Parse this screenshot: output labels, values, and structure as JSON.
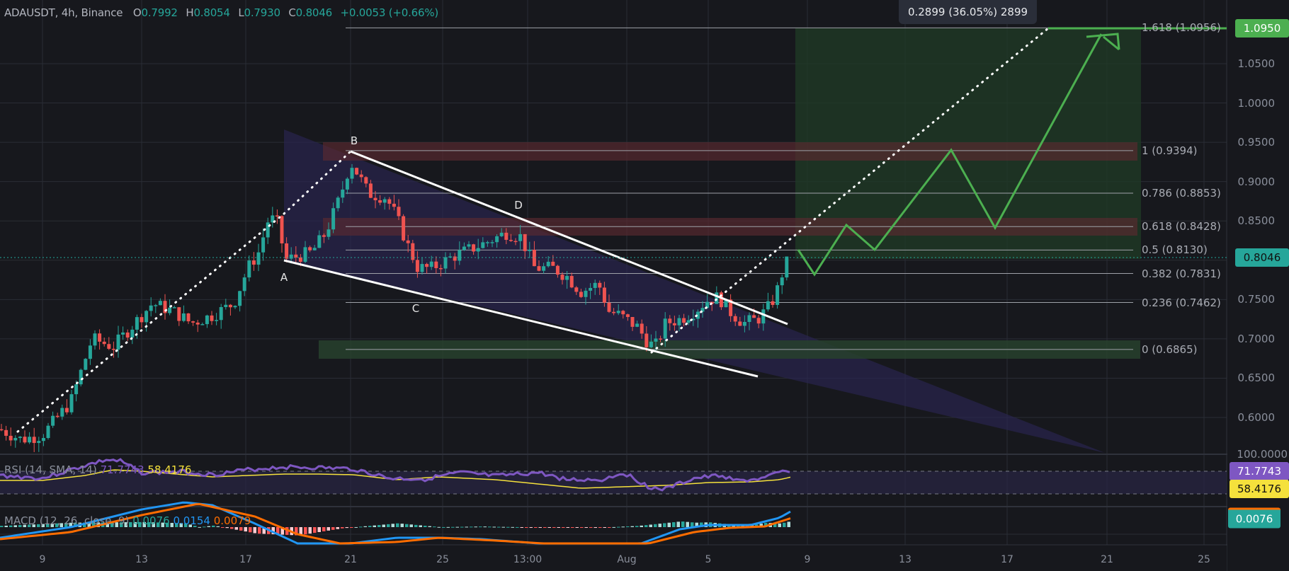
{
  "header": {
    "symbol": "ADAUSDT, 4h, Binance",
    "open_label": "O",
    "open": "0.7992",
    "high_label": "H",
    "high": "0.8054",
    "low_label": "L",
    "low": "0.7930",
    "close_label": "C",
    "close": "0.8046",
    "change": "+0.0053 (+0.66%)"
  },
  "measure_tooltip": "0.2899 (36.05%) 2899",
  "price_axis": {
    "ticks": [
      "1.0500",
      "1.0000",
      "0.9500",
      "0.9000",
      "0.8500",
      "0.7500",
      "0.7000",
      "0.6500",
      "0.6000"
    ],
    "target_tag": "1.0950",
    "last_price_tag": "0.8046"
  },
  "fib_levels": [
    {
      "label": "1.618 (1.0956)",
      "price": 1.0956
    },
    {
      "label": "1 (0.9394)",
      "price": 0.9394
    },
    {
      "label": "0.786 (0.8853)",
      "price": 0.8853
    },
    {
      "label": "0.618 (0.8428)",
      "price": 0.8428
    },
    {
      "label": "0.5 (0.8130)",
      "price": 0.813
    },
    {
      "label": "0.382 (0.7831)",
      "price": 0.7831
    },
    {
      "label": "0.236 (0.7462)",
      "price": 0.7462
    },
    {
      "label": "0 (0.6865)",
      "price": 0.6865
    }
  ],
  "pattern_points": {
    "a": "A",
    "b": "B",
    "c": "C",
    "d": "D"
  },
  "rsi": {
    "label": "RSI (14, SMA, 14)",
    "value": "71.7743",
    "sma": "58.4176",
    "axis_top": "100.0000",
    "value_tag": "71.7743",
    "sma_tag": "58.4176"
  },
  "macd": {
    "label": "MACD (12, 26, close, 9)",
    "hist": "0.0076",
    "macd": "0.0154",
    "signal": "0.0079",
    "value_tag": "0.0076",
    "axis_zero": "0.0000"
  },
  "time_axis": {
    "ticks": [
      "9",
      "13",
      "17",
      "21",
      "25",
      "13:00",
      "Aug",
      "5",
      "9",
      "13",
      "17",
      "21",
      "25"
    ]
  },
  "colors": {
    "background": "#17181d",
    "up": "#26a69a",
    "down": "#ef5350",
    "rsi_line": "#7e57c2",
    "rsi_sma": "#f5e13c",
    "macd_line": "#2196f3",
    "signal_line": "#ff6d00",
    "projection": "#4caf50",
    "target_tag": "#4caf50",
    "last_price_tag": "#26a69a"
  },
  "chart_data": {
    "type": "candlestick",
    "title": "ADAUSDT, 4h, Binance",
    "ohlc_last": {
      "open": 0.7992,
      "high": 0.8054,
      "low": 0.793,
      "close": 0.8046,
      "change": 0.0053,
      "change_pct": 0.66
    },
    "ylim": [
      0.56,
      1.11
    ],
    "y_ticks": [
      0.6,
      0.65,
      0.7,
      0.75,
      0.8,
      0.85,
      0.9,
      0.95,
      1.0,
      1.05
    ],
    "x_ticks": [
      "9",
      "13",
      "17",
      "21",
      "25",
      "13:00",
      "Aug",
      "5",
      "9",
      "13",
      "17",
      "21",
      "25"
    ],
    "approx_path": [
      {
        "x": "early Jul (left edge)",
        "price": 0.585
      },
      {
        "x": "~9",
        "price": 0.58
      },
      {
        "x": "~13",
        "price": 0.73
      },
      {
        "x": "~17",
        "price": 0.74
      },
      {
        "x": "~18",
        "price": 0.86
      },
      {
        "x": "A (~19)",
        "price": 0.8
      },
      {
        "x": "B (~21)",
        "price": 0.9394
      },
      {
        "x": "C (~24)",
        "price": 0.76
      },
      {
        "x": "D (~13:00)",
        "price": 0.85
      },
      {
        "x": "low (~Aug 3)",
        "price": 0.6865
      },
      {
        "x": "~Aug 5",
        "price": 0.755
      },
      {
        "x": "~Aug 6",
        "price": 0.72
      },
      {
        "x": "last (~Aug 8)",
        "price": 0.8046
      }
    ],
    "fibonacci": {
      "0": 0.6865,
      "0.236": 0.7462,
      "0.382": 0.7831,
      "0.5": 0.813,
      "0.618": 0.8428,
      "0.786": 0.8853,
      "1": 0.9394,
      "1.618": 1.0956
    },
    "annotations": [
      "A",
      "B",
      "C",
      "D",
      "falling wedge",
      "projected zig-zag path to 1.0950",
      "measure: 0.2899 (36.05%) 2899"
    ],
    "indicators": {
      "rsi": {
        "period": 14,
        "sma": 14,
        "value": 71.7743,
        "sma_value": 58.4176
      },
      "macd": {
        "fast": 12,
        "slow": 26,
        "source": "close",
        "signal": 9,
        "histogram": 0.0076,
        "macd": 0.0154,
        "signal_value": 0.0079
      }
    },
    "grid": true
  }
}
